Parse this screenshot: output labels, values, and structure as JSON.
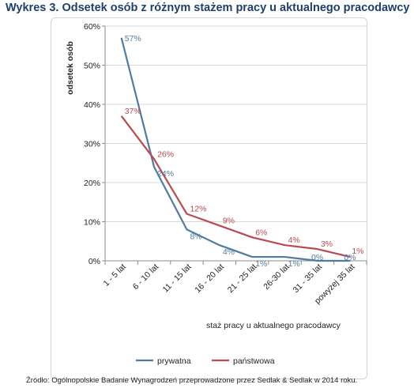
{
  "title": "Wykres 3. Odsetek osób z różnym stażem pracy u aktualnego pracodawcy",
  "source": "Źródło: Ogólnopolskie Badanie Wynagrodzeń przeprowadzone przez Sedlak & Sedlak w 2014 roku.",
  "chart_data": {
    "type": "line",
    "title": "Wykres 3. Odsetek osób z różnym stażem pracy u aktualnego pracodawcy",
    "xlabel": "staż pracy u aktualnego pracodawcy",
    "ylabel": "odsetek osób",
    "categories": [
      "1 - 5 lat",
      "6 - 10 lat",
      "11 - 15 lat",
      "16 - 20 lat",
      "21 - 25 lat",
      "26-30 lat",
      "31 - 35 lat",
      "powyżej 35 lat"
    ],
    "yticks": [
      "0%",
      "10%",
      "20%",
      "30%",
      "40%",
      "50%",
      "60%"
    ],
    "ylim": [
      0,
      60
    ],
    "grid": true,
    "legend_position": "bottom",
    "series": [
      {
        "name": "prywatna",
        "color": "#4f7ba3",
        "values": [
          57,
          24,
          8,
          4,
          1,
          1,
          0,
          0
        ],
        "labels": [
          "57%",
          "24%",
          "8%",
          "4%",
          "1%",
          "1%",
          "0%",
          "0%"
        ]
      },
      {
        "name": "państwowa",
        "color": "#b94a4e",
        "values": [
          37,
          26,
          12,
          9,
          6,
          4,
          3,
          1
        ],
        "labels": [
          "37%",
          "26%",
          "12%",
          "9%",
          "6%",
          "4%",
          "3%",
          "1%"
        ]
      }
    ]
  }
}
